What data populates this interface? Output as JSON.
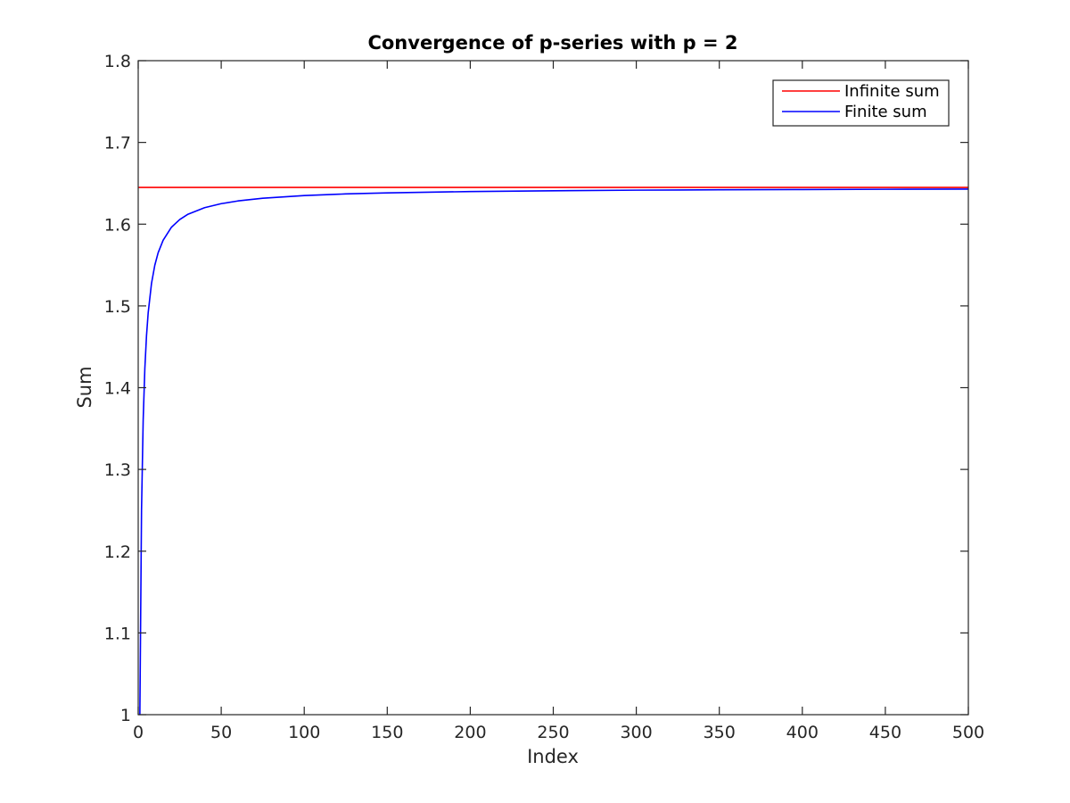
{
  "chart_data": {
    "type": "line",
    "title": "Convergence of p-series with p = 2",
    "xlabel": "Index",
    "ylabel": "Sum",
    "xlim": [
      0,
      500
    ],
    "ylim": [
      1,
      1.8
    ],
    "xticks": [
      0,
      50,
      100,
      150,
      200,
      250,
      300,
      350,
      400,
      450,
      500
    ],
    "yticks": [
      1,
      1.1,
      1.2,
      1.3,
      1.4,
      1.5,
      1.6,
      1.7,
      1.8
    ],
    "xtick_labels": [
      "0",
      "50",
      "100",
      "150",
      "200",
      "250",
      "300",
      "350",
      "400",
      "450",
      "500"
    ],
    "ytick_labels": [
      "1",
      "1.1",
      "1.2",
      "1.3",
      "1.4",
      "1.5",
      "1.6",
      "1.7",
      "1.8"
    ],
    "grid": false,
    "legend_position": "top-right",
    "series": [
      {
        "name": "Infinite sum",
        "color": "#ff0000",
        "x": [
          0,
          500
        ],
        "y": [
          1.6449,
          1.6449
        ]
      },
      {
        "name": "Finite sum",
        "color": "#0000ff",
        "x": [
          1,
          2,
          3,
          4,
          5,
          6,
          8,
          10,
          12,
          15,
          20,
          25,
          30,
          40,
          50,
          60,
          75,
          100,
          125,
          150,
          200,
          250,
          300,
          350,
          400,
          450,
          500
        ],
        "y": [
          1.0,
          1.25,
          1.3611,
          1.4236,
          1.4636,
          1.4914,
          1.5274,
          1.5498,
          1.565,
          1.5803,
          1.5962,
          1.6057,
          1.6122,
          1.6202,
          1.6251,
          1.6284,
          1.6317,
          1.635,
          1.637,
          1.6383,
          1.6399,
          1.6409,
          1.6416,
          1.6421,
          1.6424,
          1.6427,
          1.6429
        ]
      }
    ]
  }
}
